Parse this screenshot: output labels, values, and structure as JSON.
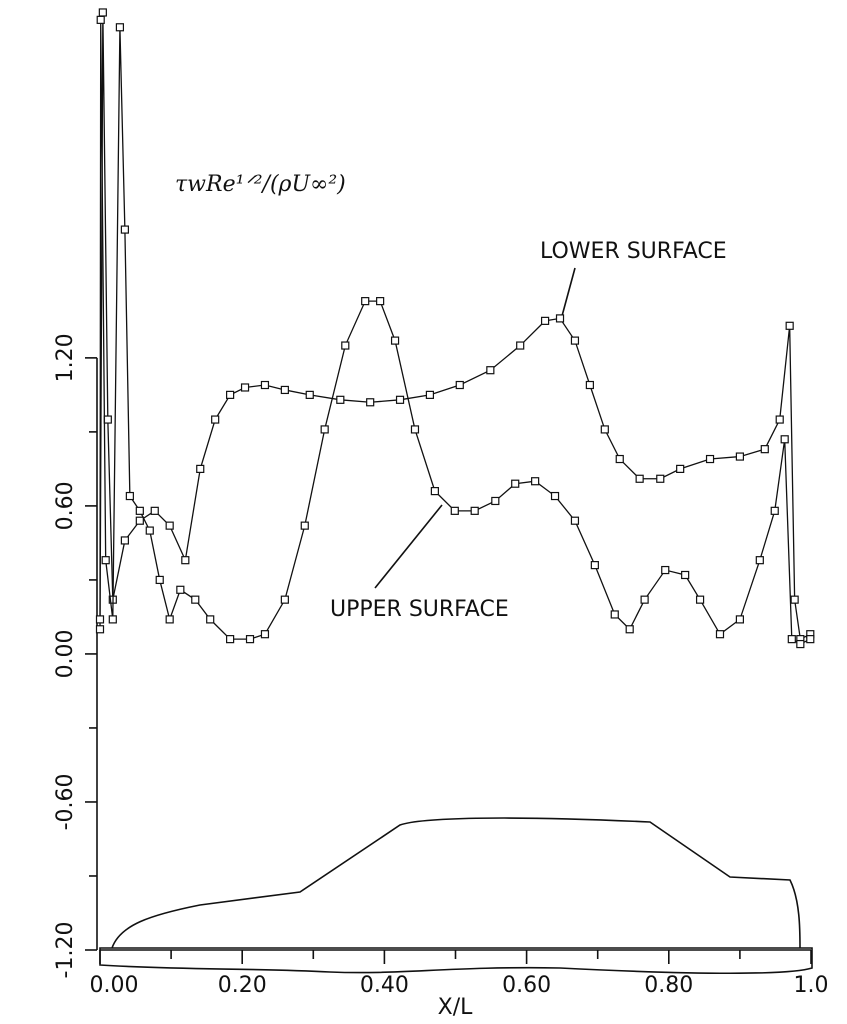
{
  "chart_data": {
    "type": "line",
    "title": "τwRe¹ᐟ²/(ρU∞²)",
    "x_label": "X/L",
    "annotations": [
      "LOWER SURFACE",
      "UPPER SURFACE"
    ],
    "xlim": [
      0,
      1
    ],
    "ylim": [
      -1.2,
      2.61
    ],
    "xticks": [
      {
        "value": 0,
        "label": "0.00"
      },
      {
        "value": 0.2,
        "label": "0.20"
      },
      {
        "value": 0.4,
        "label": "0.40"
      },
      {
        "value": 0.6,
        "label": "0.60"
      },
      {
        "value": 0.8,
        "label": "0.80"
      },
      {
        "value": 1,
        "label": "1.0"
      }
    ],
    "xticks_minor": [
      0.1,
      0.3,
      0.5,
      0.7,
      0.9
    ],
    "yticks": [
      {
        "value": -1.2,
        "label": "-1.20"
      },
      {
        "value": -0.6,
        "label": "-0.60"
      },
      {
        "value": 0,
        "label": "0.00"
      },
      {
        "value": 0.6,
        "label": "0.60"
      },
      {
        "value": 1.2,
        "label": "1.20"
      }
    ],
    "yticks_minor": [
      -0.9,
      -0.3,
      0.3,
      0.9
    ],
    "series": [
      {
        "name": "LOWER SURFACE",
        "color": "#111111",
        "x": [
          0.0,
          0.004,
          0.011,
          0.018,
          0.035,
          0.056,
          0.077,
          0.098,
          0.12,
          0.141,
          0.162,
          0.183,
          0.204,
          0.232,
          0.26,
          0.295,
          0.338,
          0.38,
          0.422,
          0.464,
          0.506,
          0.549,
          0.591,
          0.626,
          0.647,
          0.668,
          0.689,
          0.71,
          0.731,
          0.759,
          0.788,
          0.816,
          0.858,
          0.9,
          0.935,
          0.956,
          0.97,
          0.977,
          0.985,
          0.999
        ],
        "values": [
          0.1,
          2.6,
          0.95,
          0.22,
          0.46,
          0.54,
          0.58,
          0.52,
          0.38,
          0.75,
          0.95,
          1.05,
          1.08,
          1.09,
          1.07,
          1.05,
          1.03,
          1.02,
          1.03,
          1.05,
          1.09,
          1.15,
          1.25,
          1.35,
          1.36,
          1.27,
          1.09,
          0.91,
          0.79,
          0.71,
          0.71,
          0.75,
          0.79,
          0.8,
          0.83,
          0.95,
          1.33,
          0.22,
          0.06,
          0.08
        ]
      },
      {
        "name": "UPPER SURFACE",
        "color": "#111111",
        "x": [
          0.0,
          0.001,
          0.008,
          0.018,
          0.028,
          0.035,
          0.042,
          0.056,
          0.07,
          0.084,
          0.098,
          0.113,
          0.134,
          0.155,
          0.183,
          0.211,
          0.232,
          0.26,
          0.288,
          0.316,
          0.345,
          0.373,
          0.394,
          0.415,
          0.443,
          0.471,
          0.499,
          0.527,
          0.556,
          0.584,
          0.612,
          0.64,
          0.668,
          0.696,
          0.724,
          0.745,
          0.766,
          0.795,
          0.823,
          0.844,
          0.872,
          0.9,
          0.928,
          0.949,
          0.963,
          0.973,
          0.985,
          0.999
        ],
        "values": [
          0.14,
          2.57,
          0.38,
          0.14,
          2.54,
          1.72,
          0.64,
          0.58,
          0.5,
          0.3,
          0.14,
          0.26,
          0.22,
          0.14,
          0.06,
          0.06,
          0.08,
          0.22,
          0.52,
          0.91,
          1.25,
          1.43,
          1.43,
          1.27,
          0.91,
          0.66,
          0.58,
          0.58,
          0.62,
          0.69,
          0.7,
          0.64,
          0.54,
          0.36,
          0.16,
          0.1,
          0.22,
          0.34,
          0.32,
          0.22,
          0.08,
          0.14,
          0.38,
          0.58,
          0.87,
          0.06,
          0.04,
          0.06
        ]
      }
    ]
  }
}
